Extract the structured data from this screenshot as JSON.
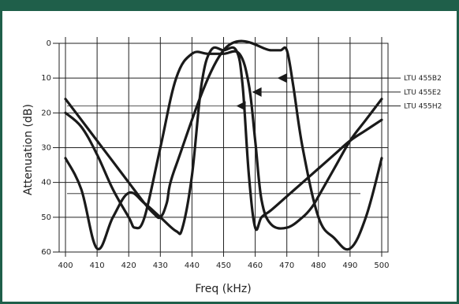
{
  "colors": {
    "frame": "#1f5f4a",
    "curve": "#1a1a1a",
    "grid": "#222222"
  },
  "chart_data": {
    "type": "line",
    "xlabel": "Freq (kHz)",
    "ylabel": "Attenuation (dB)",
    "xlim": [
      398,
      502
    ],
    "ylim": [
      0,
      60
    ],
    "y_inverted": true,
    "x_ticks": [
      400,
      410,
      420,
      430,
      440,
      450,
      460,
      470,
      480,
      490,
      500
    ],
    "y_ticks": [
      0,
      10,
      20,
      30,
      40,
      50,
      60
    ],
    "grid": true,
    "series": [
      {
        "name": "LTU 455B2",
        "x": [
          400,
          405,
          410,
          415,
          420,
          425,
          428,
          430,
          432,
          435,
          450,
          465,
          468,
          470,
          472,
          475,
          480,
          485,
          490,
          495,
          500
        ],
        "y": [
          16,
          22,
          28,
          34,
          40,
          46,
          49,
          50,
          46,
          35,
          2,
          2,
          2,
          2,
          12,
          30,
          50,
          56,
          59,
          50,
          33
        ]
      },
      {
        "name": "LTU 455E2",
        "x": [
          400,
          405,
          410,
          415,
          420,
          422,
          425,
          430,
          435,
          440,
          445,
          450,
          455,
          458,
          460,
          462,
          465,
          470,
          475,
          478,
          480,
          485,
          490,
          495,
          500
        ],
        "y": [
          20,
          24,
          32,
          42,
          50,
          53,
          50,
          30,
          10,
          3,
          3,
          3,
          3,
          12,
          28,
          45,
          52,
          53,
          50,
          47,
          44,
          36,
          28,
          22,
          16
        ]
      },
      {
        "name": "LTU 455H2",
        "x": [
          400,
          405,
          410,
          415,
          420,
          425,
          430,
          435,
          437,
          440,
          443,
          446,
          450,
          454,
          456,
          458,
          460,
          462,
          465,
          470,
          475,
          480,
          485,
          490,
          495,
          500
        ],
        "y": [
          33,
          42,
          59,
          50,
          43,
          46,
          50,
          54,
          53,
          38,
          12,
          2,
          2,
          2,
          12,
          38,
          53,
          50,
          48,
          44,
          40,
          36,
          32,
          28,
          25,
          22
        ]
      }
    ],
    "legend": {
      "placement": "right",
      "entries": [
        "LTU 455B2",
        "LTU 455E2",
        "LTU 455H2"
      ]
    }
  }
}
